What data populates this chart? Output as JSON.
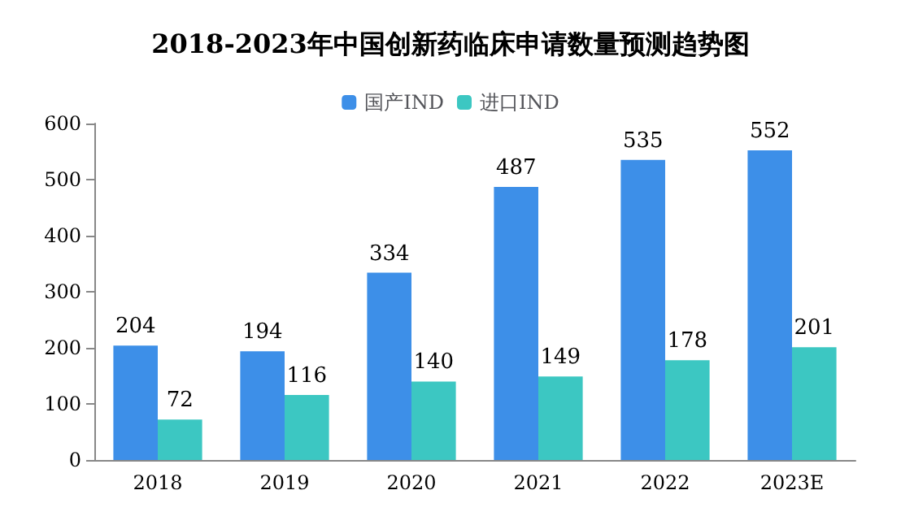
{
  "chart_data": {
    "type": "bar",
    "title": "2018-2023年中国创新药临床申请数量预测趋势图",
    "categories": [
      "2018",
      "2019",
      "2020",
      "2021",
      "2022",
      "2023E"
    ],
    "series": [
      {
        "name": "国产IND",
        "color": "#3d8fe8",
        "values": [
          204,
          194,
          334,
          487,
          535,
          552
        ]
      },
      {
        "name": "进口IND",
        "color": "#3cc7c2",
        "values": [
          72,
          116,
          140,
          149,
          178,
          201
        ]
      }
    ],
    "ylim": [
      0,
      600
    ],
    "yticks": [
      0,
      100,
      200,
      300,
      400,
      500,
      600
    ],
    "grid": false,
    "legend": "top",
    "data_labels": true
  }
}
